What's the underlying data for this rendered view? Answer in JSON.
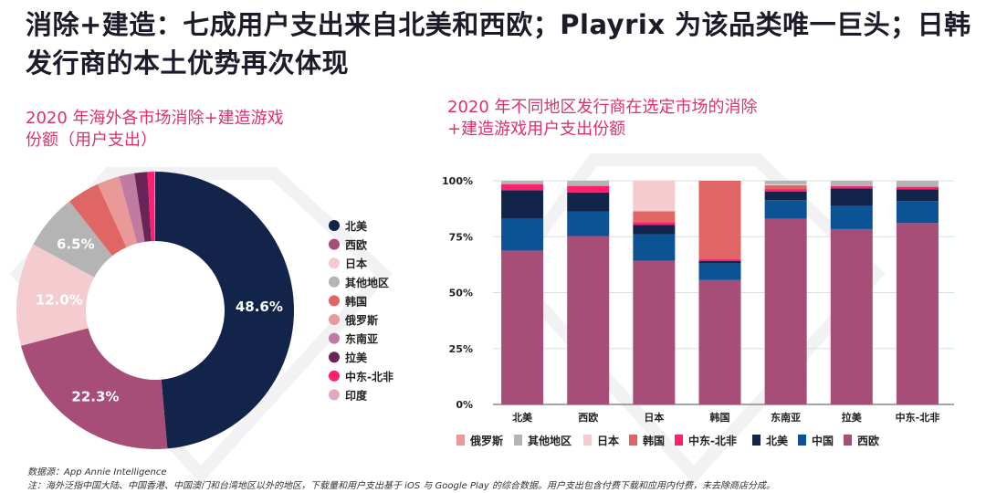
{
  "title": "消除+建造：七成用户支出来自北美和西欧；Playrix 为该品类唯一巨头；日韩发行商的本土优势再次体现",
  "colors": {
    "北美": "#13244a",
    "西欧": "#a64e78",
    "日本": "#f4cccf",
    "其他地区": "#b4b4b4",
    "韩国": "#e06666",
    "俄罗斯": "#ea9999",
    "东南亚": "#c27ba0",
    "拉美": "#6a2558",
    "中东-北非": "#ff1f6e",
    "印度": "#dda9c6",
    "中国": "#0b5394"
  },
  "footnotes": {
    "source": "数据源：App Annie Intelligence",
    "note": "注：海外泛指中国大陆、中国香港、中国澳门和台湾地区以外的地区，下载量和用户支出基于 iOS 与 Google Play 的综合数据。用户支出包含付费下载和应用内付费，未去除商店分成。"
  },
  "chart_data": [
    {
      "type": "pie",
      "title": "2020 年海外各市场消除+建造游戏份额（用户支出）",
      "categories": [
        "北美",
        "西欧",
        "日本",
        "其他地区",
        "韩国",
        "俄罗斯",
        "东南亚",
        "拉美",
        "中东-北非",
        "印度"
      ],
      "values": [
        48.6,
        22.3,
        12.0,
        6.5,
        3.8,
        2.6,
        1.8,
        1.5,
        0.8,
        0.1
      ],
      "data_labels": [
        "48.6%",
        "22.3%",
        "12.0%",
        "6.5%",
        "",
        "",
        "",
        "",
        "",
        ""
      ],
      "legend": "right",
      "donut": true
    },
    {
      "type": "bar",
      "stacked": true,
      "title": "2020 年不同地区发行商在选定市场的消除+建造游戏用户支出份额",
      "categories": [
        "北美",
        "西欧",
        "日本",
        "韩国",
        "东南亚",
        "拉美",
        "中东-北非"
      ],
      "yticks": [
        "0%",
        "25%",
        "50%",
        "75%",
        "100%"
      ],
      "ylim": [
        0,
        100
      ],
      "grid": true,
      "legend": "bottom",
      "legend_order": [
        "俄罗斯",
        "其他地区",
        "日本",
        "韩国",
        "中东-北非",
        "北美",
        "中国",
        "西欧"
      ],
      "series": [
        {
          "name": "西欧",
          "values": [
            68.8,
            75.3,
            64.3,
            55.6,
            83.0,
            78.4,
            81.1
          ]
        },
        {
          "name": "中国",
          "values": [
            14.2,
            11.0,
            11.8,
            7.5,
            8.3,
            10.3,
            9.8
          ]
        },
        {
          "name": "北美",
          "values": [
            12.8,
            8.5,
            4.1,
            1.1,
            3.8,
            7.9,
            5.3
          ]
        },
        {
          "name": "中东-北非",
          "values": [
            2.7,
            2.9,
            1.2,
            0.7,
            1.2,
            1.0,
            1.1
          ]
        },
        {
          "name": "韩国",
          "values": [
            0,
            0,
            5.0,
            35.1,
            1.7,
            0,
            0
          ]
        },
        {
          "name": "日本",
          "values": [
            0,
            0,
            13.6,
            0,
            0.4,
            0,
            0
          ]
        },
        {
          "name": "其他地区",
          "values": [
            1.5,
            2.3,
            0,
            0,
            1.6,
            2.4,
            2.7
          ]
        },
        {
          "name": "俄罗斯",
          "values": [
            0,
            0,
            0,
            0,
            0,
            0,
            0
          ]
        }
      ]
    }
  ]
}
